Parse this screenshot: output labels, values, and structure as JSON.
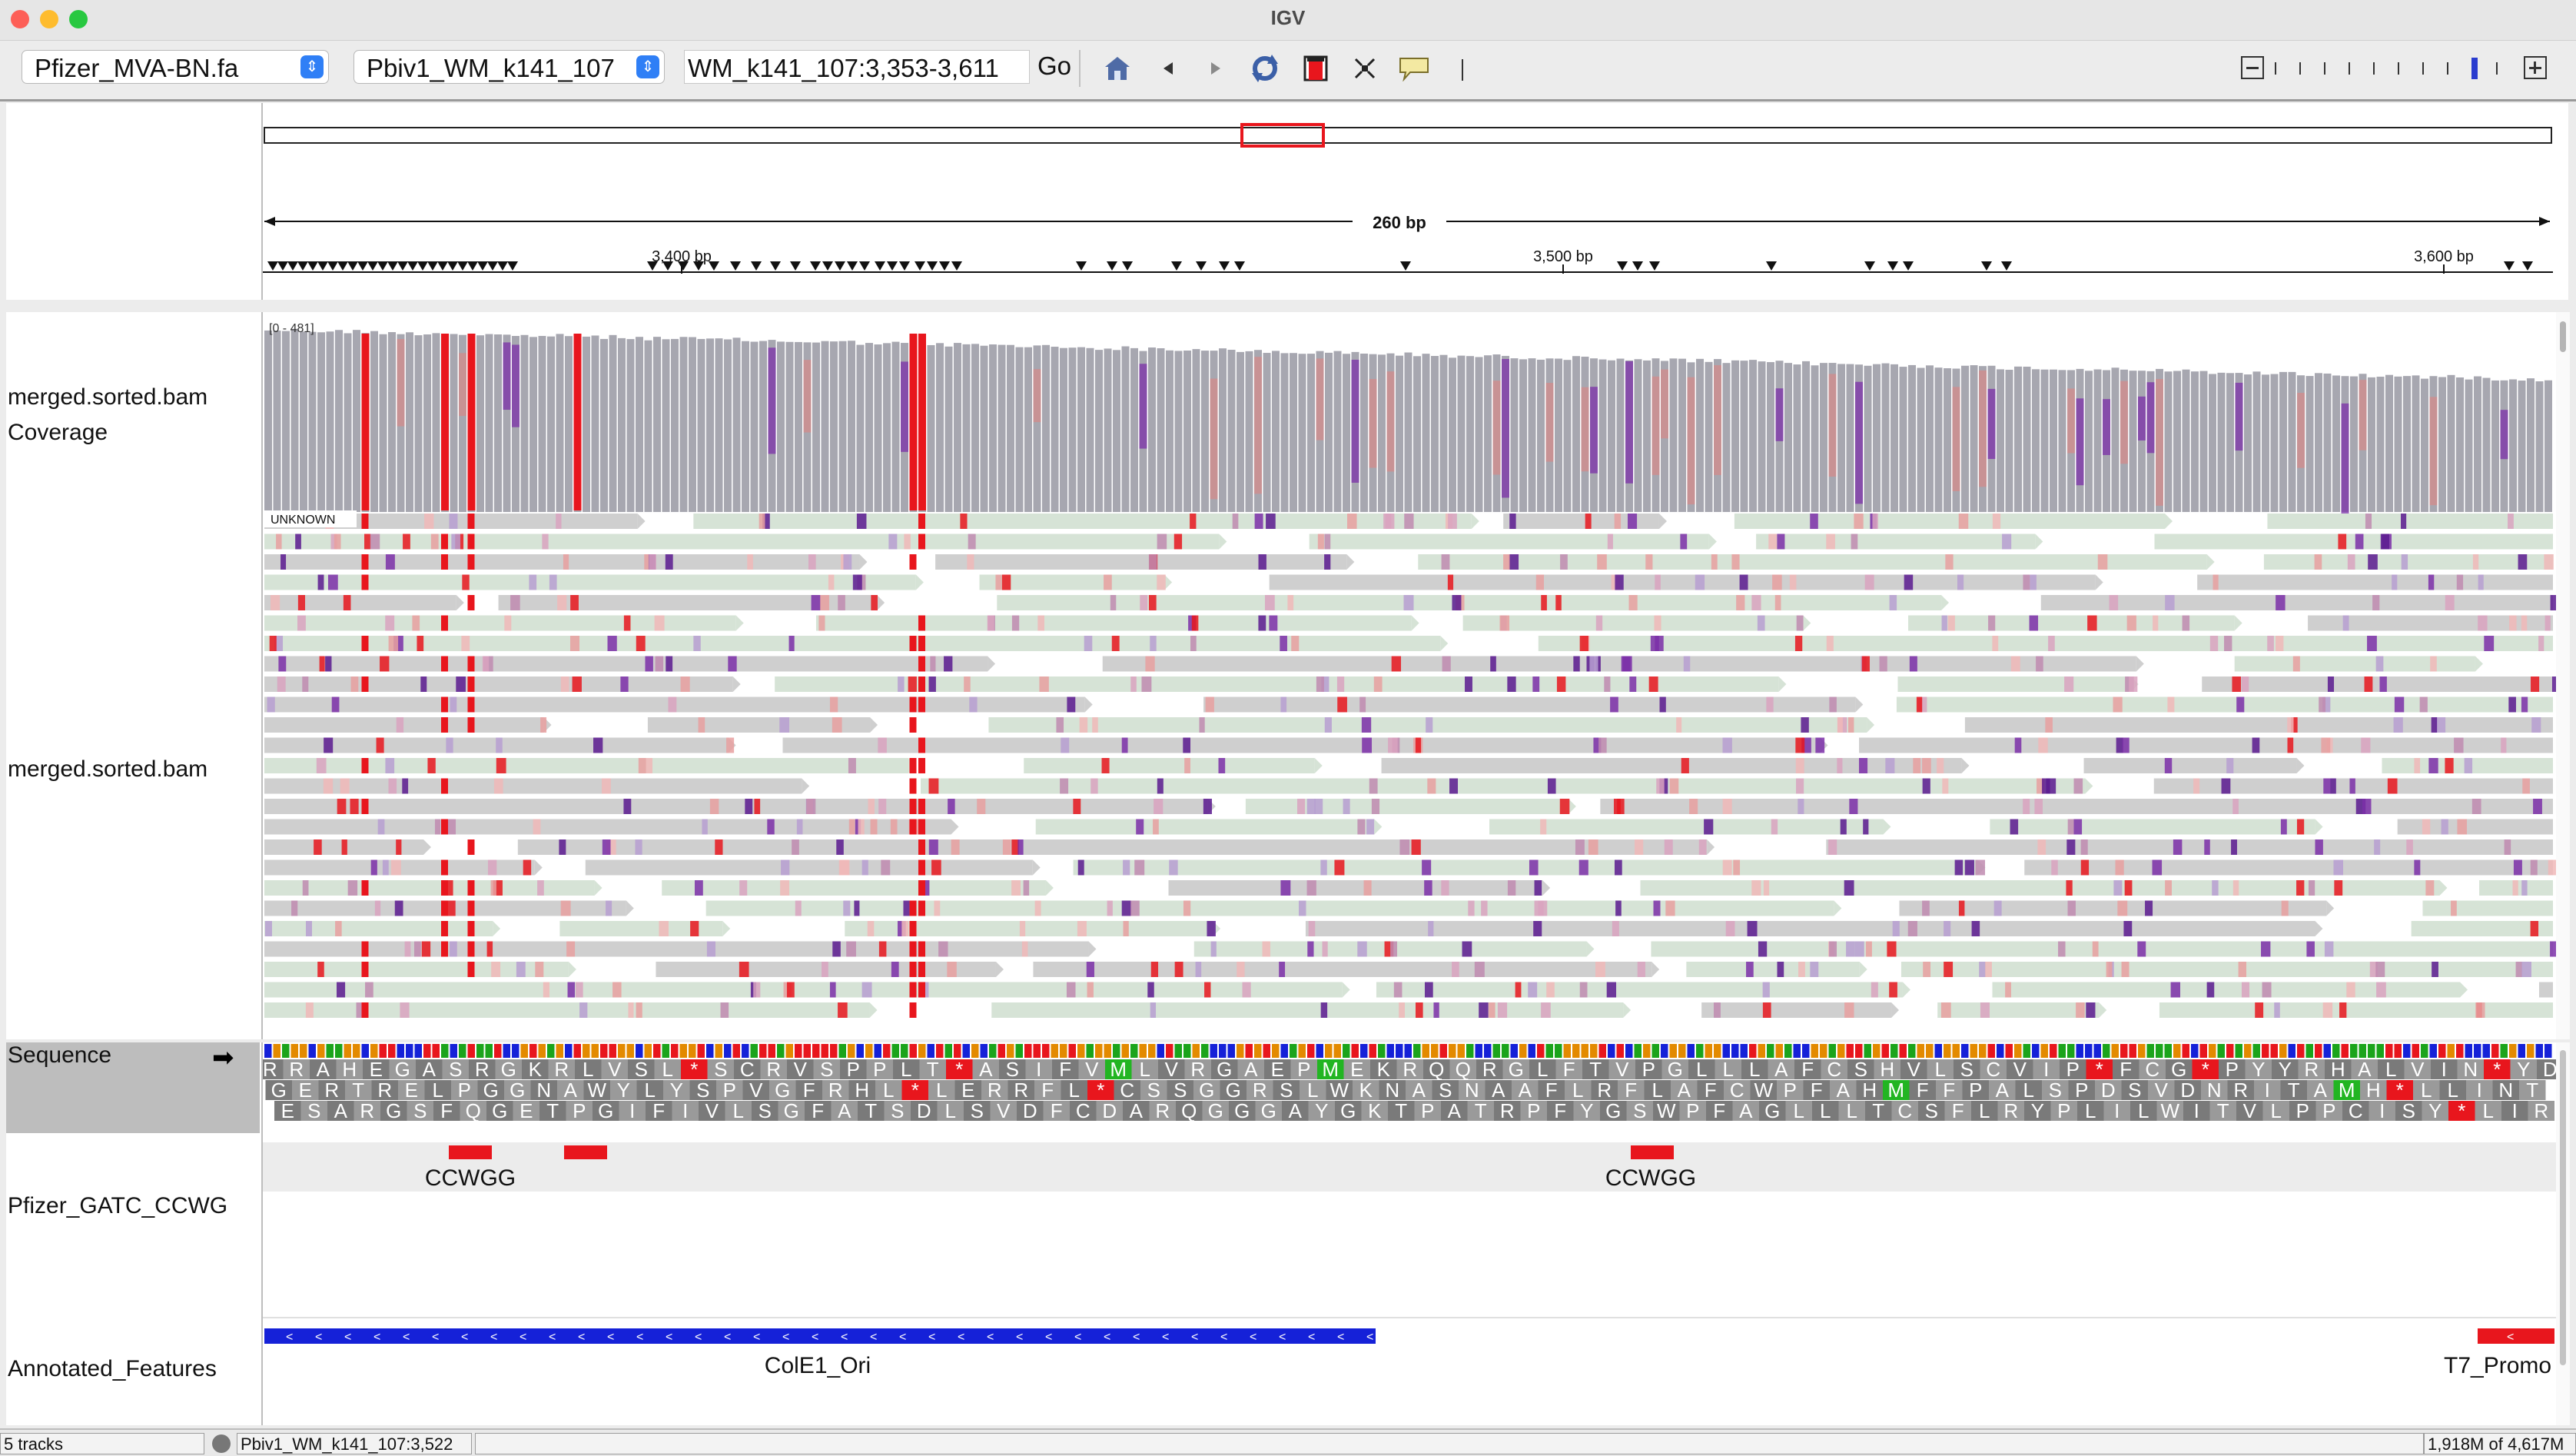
{
  "window": {
    "title": "IGV"
  },
  "toolbar": {
    "genome": "Pfizer_MVA-BN.fa",
    "chromosome": "Pbiv1_WM_k141_107",
    "locus": "WM_k141_107:3,353-3,611",
    "go_label": "Go",
    "zoom_level": 8,
    "zoom_ticks": 10
  },
  "ruler": {
    "span_label": "260 bp",
    "ticks": [
      {
        "label": "3,400 bp"
      },
      {
        "label": "3,500 bp"
      },
      {
        "label": "3,600 bp"
      }
    ]
  },
  "tracks": {
    "coverage_name": "merged.sorted.bam Coverage",
    "coverage_range": "[0 - 481]",
    "alignment_name": "merged.sorted.bam",
    "read_group_label": "UNKNOWN",
    "sequence_name": "Sequence",
    "sequence_strand_icon": "arrow-right-icon",
    "motif_track_name": "Pfizer_GATC_CCWG",
    "motif_features": [
      "CCWGG",
      "CCWGG"
    ],
    "annotation_track_name": "Annotated_Features",
    "annotation_features": [
      "ColE1_Ori",
      "T7_Promo"
    ]
  },
  "translation": {
    "frame1": "RRAHEGASRGKRLVSL*SCRVSPPLT*ASIFVMLVRGAEPMEKRQQRGLFTVPGLLLAFCSHVLSCVIP*FCG*PYYRHALVIN*YD",
    "frame2": "GERTRELPGGNAWYLYSPVGFRHL*LERRFL*CSSGGRSLWKNASNAAFLRFLAFCWPFAHMFFPALSPDSVDNRITAMH*LLINT",
    "frame3": "ESARGSFQGETPGIFIVLSGFATSDLSVDFCDARQGGGAYGKTPATRPFYGSWPFAGLLLTCSFLRYPLILWITVLPPCISY*LIR"
  },
  "status": {
    "tracks": "5 tracks",
    "position": "Pbiv1_WM_k141_107:3,522",
    "memory": "1,918M of 4,617M"
  },
  "colors": {
    "highlight_red": "#e8161d",
    "annotation_blue": "#1521d8",
    "annotation_red": "#e8161d",
    "read_gray": "#cfcfcf",
    "read_green": "#d6e3d6",
    "coverage_gray": "#a7a7b0",
    "mismatch_purple": "#7b2fa8"
  }
}
